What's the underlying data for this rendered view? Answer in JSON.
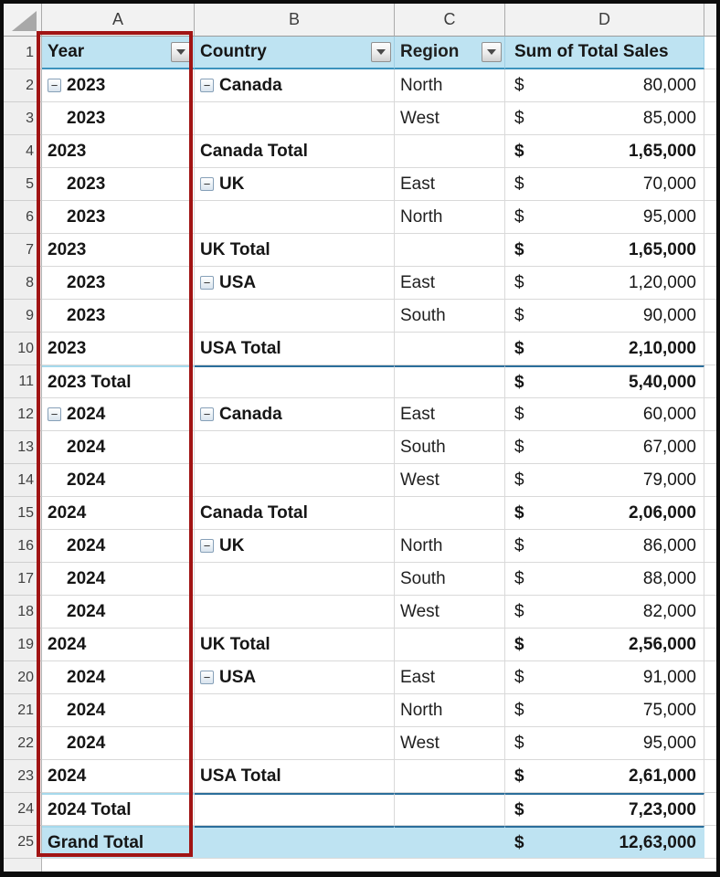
{
  "sheet": {
    "column_letters": [
      "A",
      "B",
      "C",
      "D"
    ],
    "header_row_number": "1",
    "currency_symbol": "$",
    "collapse_glyph": "−"
  },
  "pivot": {
    "headers": {
      "year": "Year",
      "country": "Country",
      "region": "Region",
      "values": "Sum of Total Sales"
    }
  },
  "colors": {
    "header_fill": "#BEE3F2",
    "grand_total_fill": "#BEE3F2",
    "highlight_border_red": "#A11414",
    "separator_dark_blue": "#2B6E9B",
    "separator_light_blue": "#A6D9EC"
  },
  "rows": [
    {
      "num": "2",
      "a": "2023",
      "a_btn": true,
      "a_indent": false,
      "b": "Canada",
      "b_btn": true,
      "c": "North",
      "d": "80,000",
      "d_bold": false,
      "sep": false,
      "grand": false
    },
    {
      "num": "3",
      "a": "2023",
      "a_btn": false,
      "a_indent": true,
      "b": "",
      "b_btn": false,
      "c": "West",
      "d": "85,000",
      "d_bold": false,
      "sep": false,
      "grand": false
    },
    {
      "num": "4",
      "a": "2023",
      "a_btn": false,
      "a_indent": false,
      "b": "Canada Total",
      "b_btn": false,
      "c": "",
      "d": "1,65,000",
      "d_bold": true,
      "sep": false,
      "grand": false
    },
    {
      "num": "5",
      "a": "2023",
      "a_btn": false,
      "a_indent": true,
      "b": "UK",
      "b_btn": true,
      "c": "East",
      "d": "70,000",
      "d_bold": false,
      "sep": false,
      "grand": false
    },
    {
      "num": "6",
      "a": "2023",
      "a_btn": false,
      "a_indent": true,
      "b": "",
      "b_btn": false,
      "c": "North",
      "d": "95,000",
      "d_bold": false,
      "sep": false,
      "grand": false
    },
    {
      "num": "7",
      "a": "2023",
      "a_btn": false,
      "a_indent": false,
      "b": "UK Total",
      "b_btn": false,
      "c": "",
      "d": "1,65,000",
      "d_bold": true,
      "sep": false,
      "grand": false
    },
    {
      "num": "8",
      "a": "2023",
      "a_btn": false,
      "a_indent": true,
      "b": "USA",
      "b_btn": true,
      "c": "East",
      "d": "1,20,000",
      "d_bold": false,
      "sep": false,
      "grand": false
    },
    {
      "num": "9",
      "a": "2023",
      "a_btn": false,
      "a_indent": true,
      "b": "",
      "b_btn": false,
      "c": "South",
      "d": "90,000",
      "d_bold": false,
      "sep": false,
      "grand": false
    },
    {
      "num": "10",
      "a": "2023",
      "a_btn": false,
      "a_indent": false,
      "b": "USA Total",
      "b_btn": false,
      "c": "",
      "d": "2,10,000",
      "d_bold": true,
      "sep": false,
      "grand": false
    },
    {
      "num": "11",
      "a": "2023 Total",
      "a_btn": false,
      "a_indent": false,
      "b": "",
      "b_btn": false,
      "c": "",
      "d": "5,40,000",
      "d_bold": true,
      "sep": true,
      "grand": false
    },
    {
      "num": "12",
      "a": "2024",
      "a_btn": true,
      "a_indent": false,
      "b": "Canada",
      "b_btn": true,
      "c": "East",
      "d": "60,000",
      "d_bold": false,
      "sep": false,
      "grand": false
    },
    {
      "num": "13",
      "a": "2024",
      "a_btn": false,
      "a_indent": true,
      "b": "",
      "b_btn": false,
      "c": "South",
      "d": "67,000",
      "d_bold": false,
      "sep": false,
      "grand": false
    },
    {
      "num": "14",
      "a": "2024",
      "a_btn": false,
      "a_indent": true,
      "b": "",
      "b_btn": false,
      "c": "West",
      "d": "79,000",
      "d_bold": false,
      "sep": false,
      "grand": false
    },
    {
      "num": "15",
      "a": "2024",
      "a_btn": false,
      "a_indent": false,
      "b": "Canada Total",
      "b_btn": false,
      "c": "",
      "d": "2,06,000",
      "d_bold": true,
      "sep": false,
      "grand": false
    },
    {
      "num": "16",
      "a": "2024",
      "a_btn": false,
      "a_indent": true,
      "b": "UK",
      "b_btn": true,
      "c": "North",
      "d": "86,000",
      "d_bold": false,
      "sep": false,
      "grand": false
    },
    {
      "num": "17",
      "a": "2024",
      "a_btn": false,
      "a_indent": true,
      "b": "",
      "b_btn": false,
      "c": "South",
      "d": "88,000",
      "d_bold": false,
      "sep": false,
      "grand": false
    },
    {
      "num": "18",
      "a": "2024",
      "a_btn": false,
      "a_indent": true,
      "b": "",
      "b_btn": false,
      "c": "West",
      "d": "82,000",
      "d_bold": false,
      "sep": false,
      "grand": false
    },
    {
      "num": "19",
      "a": "2024",
      "a_btn": false,
      "a_indent": false,
      "b": "UK Total",
      "b_btn": false,
      "c": "",
      "d": "2,56,000",
      "d_bold": true,
      "sep": false,
      "grand": false
    },
    {
      "num": "20",
      "a": "2024",
      "a_btn": false,
      "a_indent": true,
      "b": "USA",
      "b_btn": true,
      "c": "East",
      "d": "91,000",
      "d_bold": false,
      "sep": false,
      "grand": false
    },
    {
      "num": "21",
      "a": "2024",
      "a_btn": false,
      "a_indent": true,
      "b": "",
      "b_btn": false,
      "c": "North",
      "d": "75,000",
      "d_bold": false,
      "sep": false,
      "grand": false
    },
    {
      "num": "22",
      "a": "2024",
      "a_btn": false,
      "a_indent": true,
      "b": "",
      "b_btn": false,
      "c": "West",
      "d": "95,000",
      "d_bold": false,
      "sep": false,
      "grand": false
    },
    {
      "num": "23",
      "a": "2024",
      "a_btn": false,
      "a_indent": false,
      "b": "USA Total",
      "b_btn": false,
      "c": "",
      "d": "2,61,000",
      "d_bold": true,
      "sep": false,
      "grand": false
    },
    {
      "num": "24",
      "a": "2024 Total",
      "a_btn": false,
      "a_indent": false,
      "b": "",
      "b_btn": false,
      "c": "",
      "d": "7,23,000",
      "d_bold": true,
      "sep": true,
      "grand": false
    },
    {
      "num": "25",
      "a": "Grand Total",
      "a_btn": false,
      "a_indent": false,
      "b": "",
      "b_btn": false,
      "c": "",
      "d": "12,63,000",
      "d_bold": true,
      "sep": true,
      "grand": true
    }
  ]
}
